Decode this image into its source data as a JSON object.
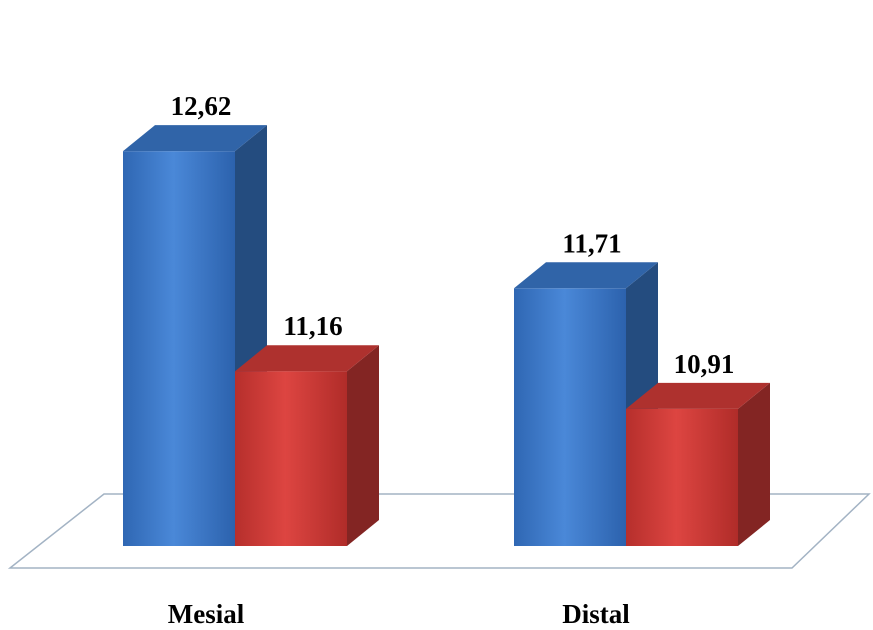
{
  "chart_data": {
    "type": "bar",
    "style": "3d-clustered-column",
    "categories": [
      "Mesial",
      "Distal"
    ],
    "series": [
      {
        "values": [
          12.62,
          11.71
        ],
        "labels": [
          "12,62",
          "11,71"
        ],
        "color": "#3a7acd"
      },
      {
        "values": [
          11.16,
          10.91
        ],
        "labels": [
          "11,16",
          "10,91"
        ],
        "color": "#d43c38"
      }
    ],
    "ylim": [
      10,
      13
    ],
    "grid": false,
    "legend": "none",
    "title": "",
    "xlabel": "",
    "ylabel": ""
  }
}
